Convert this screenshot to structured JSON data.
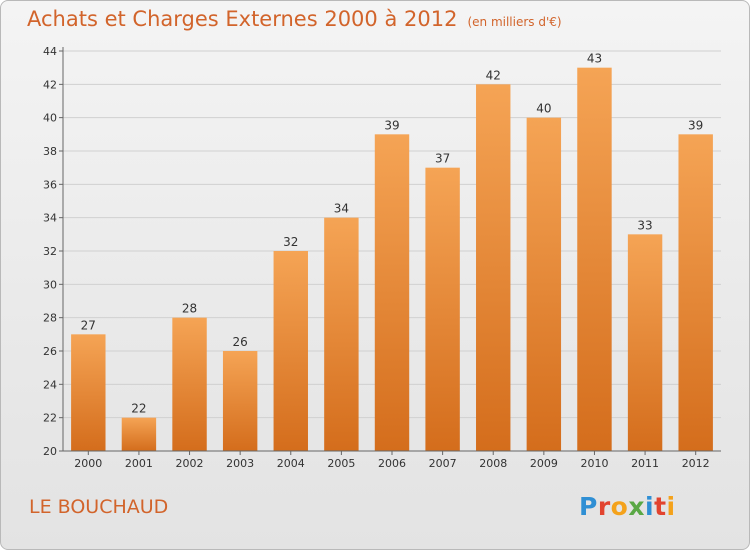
{
  "title": "Achats et Charges Externes 2000 à 2012",
  "unit": "(en milliers d'€)",
  "place": "LE BOUCHAUD",
  "logo": {
    "letters": [
      "P",
      "r",
      "o",
      "x",
      "i",
      "t",
      "i"
    ],
    "text": "Proxiti"
  },
  "colors": {
    "bar_top": "#f5a455",
    "bar_bottom": "#d46d1c",
    "title": "#d2642b"
  },
  "chart_data": {
    "type": "bar",
    "title": "Achats et Charges Externes 2000 à 2012",
    "xlabel": "",
    "ylabel": "",
    "categories": [
      "2000",
      "2001",
      "2002",
      "2003",
      "2004",
      "2005",
      "2006",
      "2007",
      "2008",
      "2009",
      "2010",
      "2011",
      "2012"
    ],
    "values": [
      27,
      22,
      28,
      26,
      32,
      34,
      39,
      37,
      42,
      40,
      43,
      33,
      39
    ],
    "ylim": [
      20,
      44
    ],
    "yticks": [
      20,
      22,
      24,
      26,
      28,
      30,
      32,
      34,
      36,
      38,
      40,
      42,
      44
    ],
    "grid": true,
    "legend": "none"
  }
}
